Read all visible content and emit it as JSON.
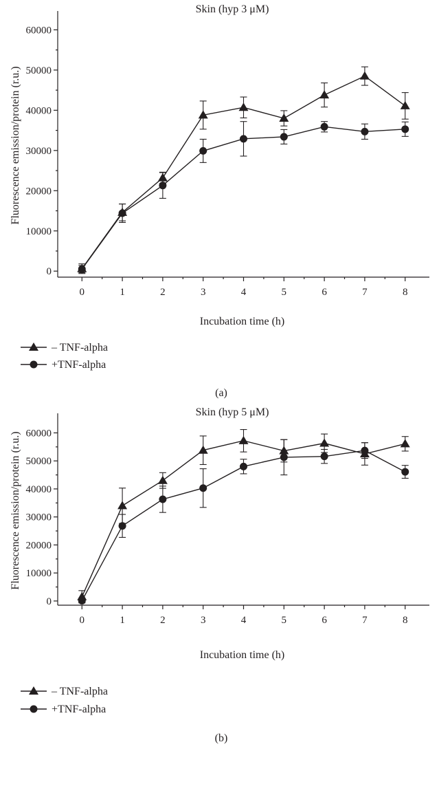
{
  "chart_data": [
    {
      "type": "line",
      "panel_label": "(a)",
      "title": "Skin (hyp 3 μM)",
      "xlabel": "Incubation time (h)",
      "ylabel": "Fluorescence emission/protein (r.u.)",
      "x": [
        0,
        1,
        2,
        3,
        4,
        5,
        6,
        7,
        8
      ],
      "x_ticks": [
        0,
        1,
        2,
        3,
        4,
        5,
        6,
        7,
        8
      ],
      "y_ticks": [
        0,
        10000,
        20000,
        30000,
        40000,
        50000,
        60000
      ],
      "xlim": [
        -0.6,
        8.6
      ],
      "ylim": [
        -1500,
        64000
      ],
      "grid": false,
      "legend_position": "bottom-left, below axis",
      "series": [
        {
          "name": "– TNF-alpha",
          "marker": "triangle",
          "values": [
            600,
            14600,
            23200,
            38800,
            40700,
            38000,
            43800,
            48500,
            41100
          ],
          "errors": [
            1200,
            2100,
            1400,
            3500,
            2600,
            1900,
            3000,
            2300,
            3300
          ]
        },
        {
          "name": "+TNF-alpha",
          "marker": "circle",
          "values": [
            500,
            14400,
            21300,
            29900,
            32900,
            33400,
            35900,
            34700,
            35300
          ],
          "errors": [
            900,
            2300,
            3200,
            2900,
            4300,
            1800,
            1300,
            1900,
            1800
          ]
        }
      ]
    },
    {
      "type": "line",
      "panel_label": "(b)",
      "title": "Skin (hyp 5 μM)",
      "xlabel": "Incubation time (h)",
      "ylabel": "Fluorescence emission/protein (r.u.)",
      "x": [
        0,
        1,
        2,
        3,
        4,
        5,
        6,
        7,
        8
      ],
      "x_ticks": [
        0,
        1,
        2,
        3,
        4,
        5,
        6,
        7,
        8
      ],
      "y_ticks": [
        0,
        10000,
        20000,
        30000,
        40000,
        50000,
        60000
      ],
      "xlim": [
        -0.6,
        8.6
      ],
      "ylim": [
        -1500,
        66000
      ],
      "grid": false,
      "legend_position": "bottom-left, below axis",
      "series": [
        {
          "name": "– TNF-alpha",
          "marker": "triangle",
          "values": [
            1500,
            34000,
            43000,
            53800,
            57200,
            53600,
            56300,
            52500,
            56100
          ],
          "errors": [
            2200,
            6300,
            2800,
            5100,
            4000,
            4000,
            3300,
            4000,
            2600
          ]
        },
        {
          "name": "+TNF-alpha",
          "marker": "circle",
          "values": [
            100,
            26800,
            36300,
            40300,
            48000,
            51300,
            51600,
            53700,
            46100
          ],
          "errors": [
            600,
            4100,
            4700,
            6900,
            2600,
            6300,
            2500,
            2800,
            2300
          ]
        }
      ]
    }
  ]
}
